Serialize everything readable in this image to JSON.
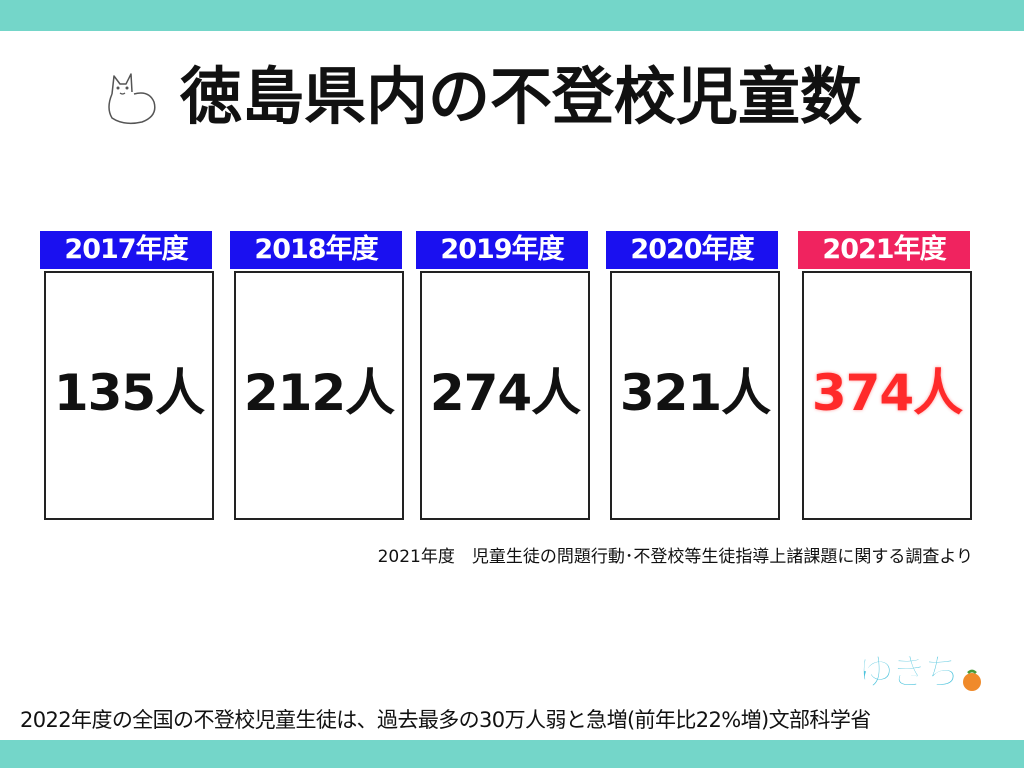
{
  "colors": {
    "band": "#74d6c9",
    "label_default": "#1a10f0",
    "label_highlight": "#f0235f",
    "value_highlight": "#ff2a2a"
  },
  "header": {
    "title": "徳島県内の不登校児童数",
    "mascot_icon": "dog-mascot-icon"
  },
  "cards": [
    {
      "year_label": "2017年度",
      "value": "135人",
      "highlight": false
    },
    {
      "year_label": "2018年度",
      "value": "212人",
      "highlight": false
    },
    {
      "year_label": "2019年度",
      "value": "274人",
      "highlight": false
    },
    {
      "year_label": "2020年度",
      "value": "321人",
      "highlight": false
    },
    {
      "year_label": "2021年度",
      "value": "374人",
      "highlight": true
    }
  ],
  "source_note": "2021年度　児童生徒の問題行動･不登校等生徒指導上諸課題に関する調査より",
  "logo": {
    "text": "ゆきち"
  },
  "footer": {
    "note": "2022年度の全国の不登校児童生徒は、過去最多の30万人弱と急増(前年比22%増)文部科学省"
  }
}
